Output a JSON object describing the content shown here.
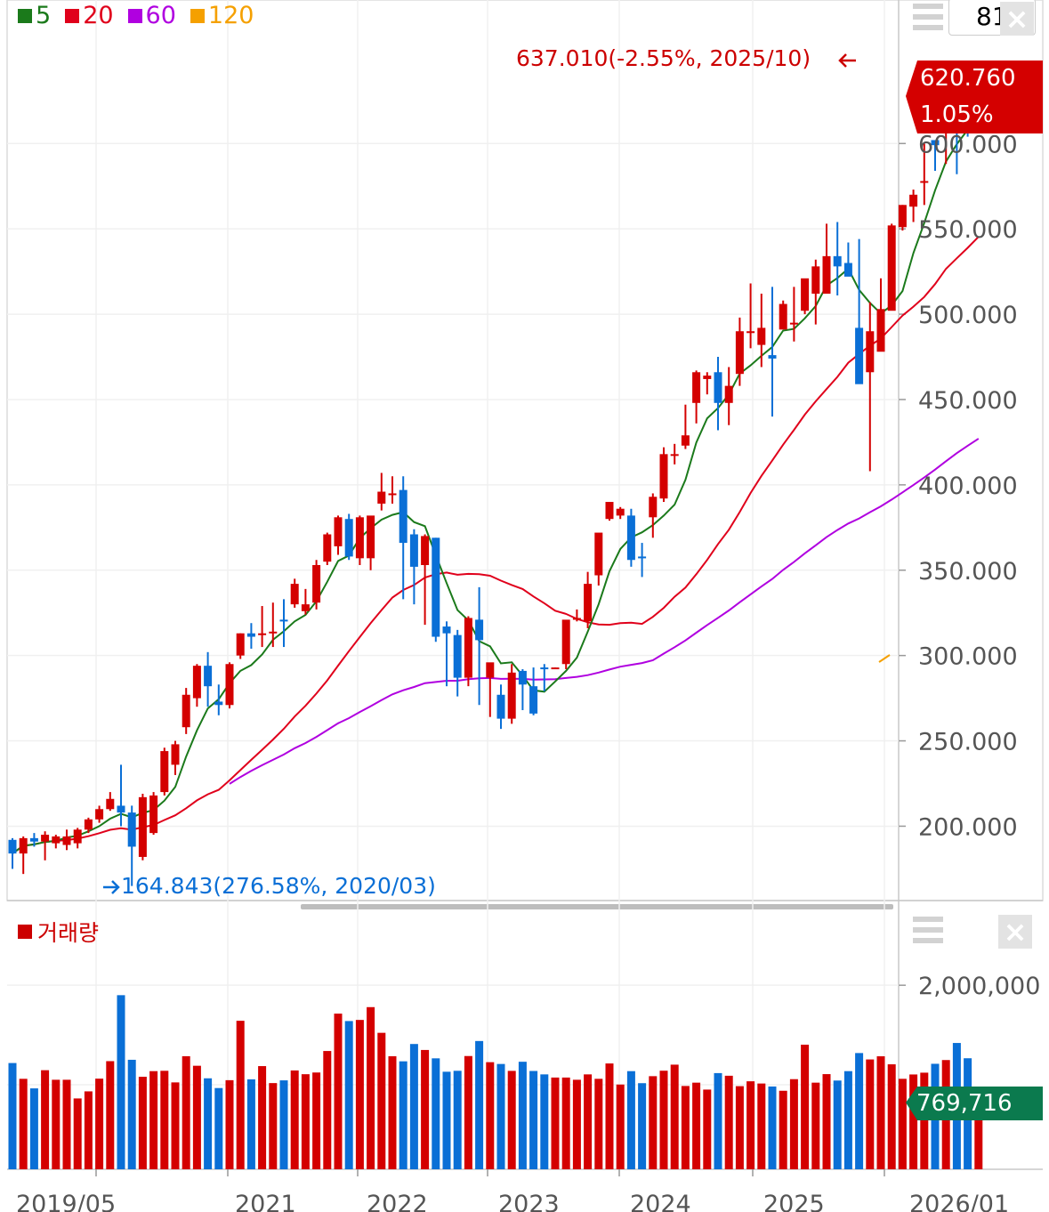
{
  "legend": {
    "ma5": {
      "label": "5",
      "color": "#1b7a1b"
    },
    "ma20": {
      "label": "20",
      "color": "#e0001b"
    },
    "ma60": {
      "label": "60",
      "color": "#b000e0"
    },
    "ma120": {
      "label": "120",
      "color": "#f5a000"
    }
  },
  "volume_legend": "거래량",
  "count_value": "81",
  "chart_data": {
    "type": "candlestick",
    "y_ticks": [
      "200.000",
      "250.000",
      "300.000",
      "350.000",
      "400.000",
      "450.000",
      "500.000",
      "550.000",
      "600.000"
    ],
    "ylim": [
      158,
      682
    ],
    "x_labels": [
      "2019/05",
      "2021",
      "2022",
      "2023",
      "2024",
      "2025",
      "2026/01"
    ],
    "current_price": "620.760",
    "current_change": "1.05%",
    "high_annotation": "637.010(-2.55%, 2025/10)",
    "low_annotation": "164.843(276.58%, 2020/03)",
    "volume_ticks": [
      "2,000,000"
    ],
    "volume_current": "769,716",
    "volume_ylim": [
      0,
      2200000
    ],
    "up_color": "#d40000",
    "down_color": "#0a6fd6",
    "candles": [
      [
        192,
        184,
        193,
        175
      ],
      [
        184,
        193,
        194,
        172
      ],
      [
        193,
        191,
        196,
        188
      ],
      [
        191,
        195,
        197,
        180
      ],
      [
        190,
        194,
        195,
        187
      ],
      [
        189,
        194,
        198,
        186
      ],
      [
        190,
        198,
        199,
        187
      ],
      [
        198,
        204,
        205,
        196
      ],
      [
        204,
        210,
        212,
        202
      ],
      [
        210,
        216,
        220,
        209
      ],
      [
        212,
        208,
        236,
        200
      ],
      [
        208,
        188,
        212,
        165
      ],
      [
        182,
        217,
        219,
        180
      ],
      [
        196,
        218,
        220,
        195
      ],
      [
        220,
        244,
        246,
        218
      ],
      [
        236,
        248,
        250,
        230
      ],
      [
        258,
        277,
        281,
        254
      ],
      [
        275,
        294,
        295,
        270
      ],
      [
        294,
        282,
        302,
        270
      ],
      [
        273,
        271,
        283,
        265
      ],
      [
        271,
        295,
        296,
        269
      ],
      [
        300,
        313,
        313,
        298
      ],
      [
        313,
        311,
        319,
        304
      ],
      [
        313,
        313,
        329,
        305
      ],
      [
        313,
        314,
        331,
        305
      ],
      [
        321,
        320,
        333,
        305
      ],
      [
        330,
        342,
        345,
        328
      ],
      [
        326,
        330,
        339,
        324
      ],
      [
        331,
        353,
        356,
        327
      ],
      [
        355,
        371,
        372,
        353
      ],
      [
        364,
        381,
        382,
        359
      ],
      [
        380,
        358,
        383,
        356
      ],
      [
        357,
        381,
        382,
        353
      ],
      [
        357,
        382,
        381,
        350
      ],
      [
        389,
        396,
        407,
        385
      ],
      [
        394,
        395,
        405,
        389
      ],
      [
        397,
        366,
        405,
        333
      ],
      [
        371,
        352,
        374,
        330
      ],
      [
        353,
        370,
        371,
        318
      ],
      [
        369,
        311,
        369,
        308
      ],
      [
        317,
        313,
        320,
        282
      ],
      [
        312,
        287,
        315,
        276
      ],
      [
        287,
        322,
        323,
        282
      ],
      [
        321,
        309,
        340,
        271
      ],
      [
        287,
        296,
        292,
        264
      ],
      [
        277,
        263,
        283,
        257
      ],
      [
        263,
        290,
        295,
        260
      ],
      [
        291,
        283,
        292,
        268
      ],
      [
        282,
        266,
        293,
        265
      ],
      [
        293,
        292,
        295,
        279
      ],
      [
        293,
        293,
        292,
        293
      ],
      [
        295,
        321,
        320,
        292
      ],
      [
        322,
        322,
        327,
        320
      ],
      [
        320,
        342,
        349,
        316
      ],
      [
        347,
        372,
        371,
        341
      ],
      [
        380,
        390,
        390,
        379
      ],
      [
        382,
        386,
        387,
        380
      ],
      [
        382,
        356,
        386,
        352
      ],
      [
        358,
        357,
        366,
        346
      ],
      [
        381,
        393,
        395,
        369
      ],
      [
        392,
        418,
        422,
        390
      ],
      [
        418,
        418,
        424,
        412
      ],
      [
        423,
        429,
        447,
        421
      ],
      [
        448,
        466,
        467,
        436
      ],
      [
        462,
        464,
        466,
        453
      ],
      [
        466,
        448,
        475,
        432
      ],
      [
        448,
        458,
        469,
        435
      ],
      [
        465,
        490,
        498,
        458
      ],
      [
        489,
        490,
        518,
        480
      ],
      [
        482,
        492,
        512,
        469
      ],
      [
        476,
        474,
        516,
        440
      ],
      [
        491,
        506,
        508,
        493
      ],
      [
        495,
        495,
        516,
        484
      ],
      [
        502,
        521,
        510,
        500
      ],
      [
        512,
        528,
        532,
        494
      ],
      [
        512,
        534,
        553,
        514
      ],
      [
        534,
        528,
        554,
        511
      ],
      [
        530,
        522,
        542,
        523
      ],
      [
        492,
        459,
        544,
        482
      ],
      [
        466,
        490,
        507,
        408
      ],
      [
        478,
        503,
        521,
        494
      ],
      [
        502,
        552,
        553,
        510
      ],
      [
        551,
        564,
        564,
        549
      ],
      [
        563,
        570,
        573,
        554
      ],
      [
        578,
        578,
        600,
        564
      ],
      [
        602,
        599,
        601,
        584
      ],
      [
        612,
        636,
        637,
        588
      ],
      [
        630,
        615,
        637,
        582
      ],
      [
        626,
        612,
        627,
        604
      ],
      [
        619,
        621,
        625,
        610
      ]
    ],
    "volume": [
      1245000,
      1060000,
      948000,
      1161000,
      1049000,
      1049000,
      830000,
      913000,
      1062000,
      1267000,
      2040000,
      1283000,
      1084000,
      1150000,
      1154000,
      1018000,
      1325000,
      1213000,
      1066000,
      952000,
      1044000,
      1740000,
      1054000,
      1209000,
      1010000,
      1042000,
      1158000,
      1114000,
      1134000,
      1386000,
      1824000,
      1737000,
      1750000,
      1900000,
      1599000,
      1325000,
      1265000,
      1468000,
      1398000,
      1300000,
      1143000,
      1154000,
      1327000,
      1503000,
      1255000,
      1234000,
      1153000,
      1260000,
      1152000,
      1112000,
      1075000,
      1075000,
      1049000,
      1112000,
      1060000,
      1240000,
      993000,
      1150000,
      1009000,
      1091000,
      1155000,
      1226000,
      976000,
      1015000,
      934000,
      1127000,
      1096000,
      974000,
      1031000,
      1005000,
      970000,
      920000,
      1056000,
      1460000,
      1015000,
      1115000,
      1040000,
      1150000,
      1362000,
      1287000,
      1324000,
      1230000,
      1060000,
      1111000,
      1132000,
      1236000,
      1280000,
      1480000,
      1301000,
      785000
    ]
  }
}
